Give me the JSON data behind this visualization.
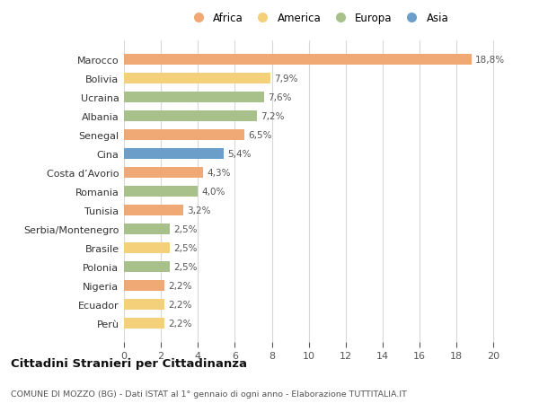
{
  "countries": [
    "Perù",
    "Ecuador",
    "Nigeria",
    "Polonia",
    "Brasile",
    "Serbia/Montenegro",
    "Tunisia",
    "Romania",
    "Costa d’Avorio",
    "Cina",
    "Senegal",
    "Albania",
    "Ucraina",
    "Bolivia",
    "Marocco"
  ],
  "values": [
    2.2,
    2.2,
    2.2,
    2.5,
    2.5,
    2.5,
    3.2,
    4.0,
    4.3,
    5.4,
    6.5,
    7.2,
    7.6,
    7.9,
    18.8
  ],
  "labels": [
    "2,2%",
    "2,2%",
    "2,2%",
    "2,5%",
    "2,5%",
    "2,5%",
    "3,2%",
    "4,0%",
    "4,3%",
    "5,4%",
    "6,5%",
    "7,2%",
    "7,6%",
    "7,9%",
    "18,8%"
  ],
  "continents": [
    "America",
    "America",
    "Africa",
    "Europa",
    "America",
    "Europa",
    "Africa",
    "Europa",
    "Africa",
    "Asia",
    "Africa",
    "Europa",
    "Europa",
    "America",
    "Africa"
  ],
  "colors": {
    "Africa": "#F0A875",
    "America": "#F5D07A",
    "Europa": "#A8C08A",
    "Asia": "#6B9EC8"
  },
  "legend_order": [
    "Africa",
    "America",
    "Europa",
    "Asia"
  ],
  "xlim": [
    0,
    21
  ],
  "xticks": [
    0,
    2,
    4,
    6,
    8,
    10,
    12,
    14,
    16,
    18,
    20
  ],
  "title": "Cittadini Stranieri per Cittadinanza",
  "subtitle": "COMUNE DI MOZZO (BG) - Dati ISTAT al 1° gennaio di ogni anno - Elaborazione TUTTITALIA.IT",
  "bg_color": "#ffffff",
  "grid_color": "#d8d8d8",
  "bar_height": 0.55,
  "label_fontsize": 7.5,
  "ytick_fontsize": 8.0,
  "xtick_fontsize": 8.0,
  "title_fontsize": 9.5,
  "subtitle_fontsize": 6.8
}
